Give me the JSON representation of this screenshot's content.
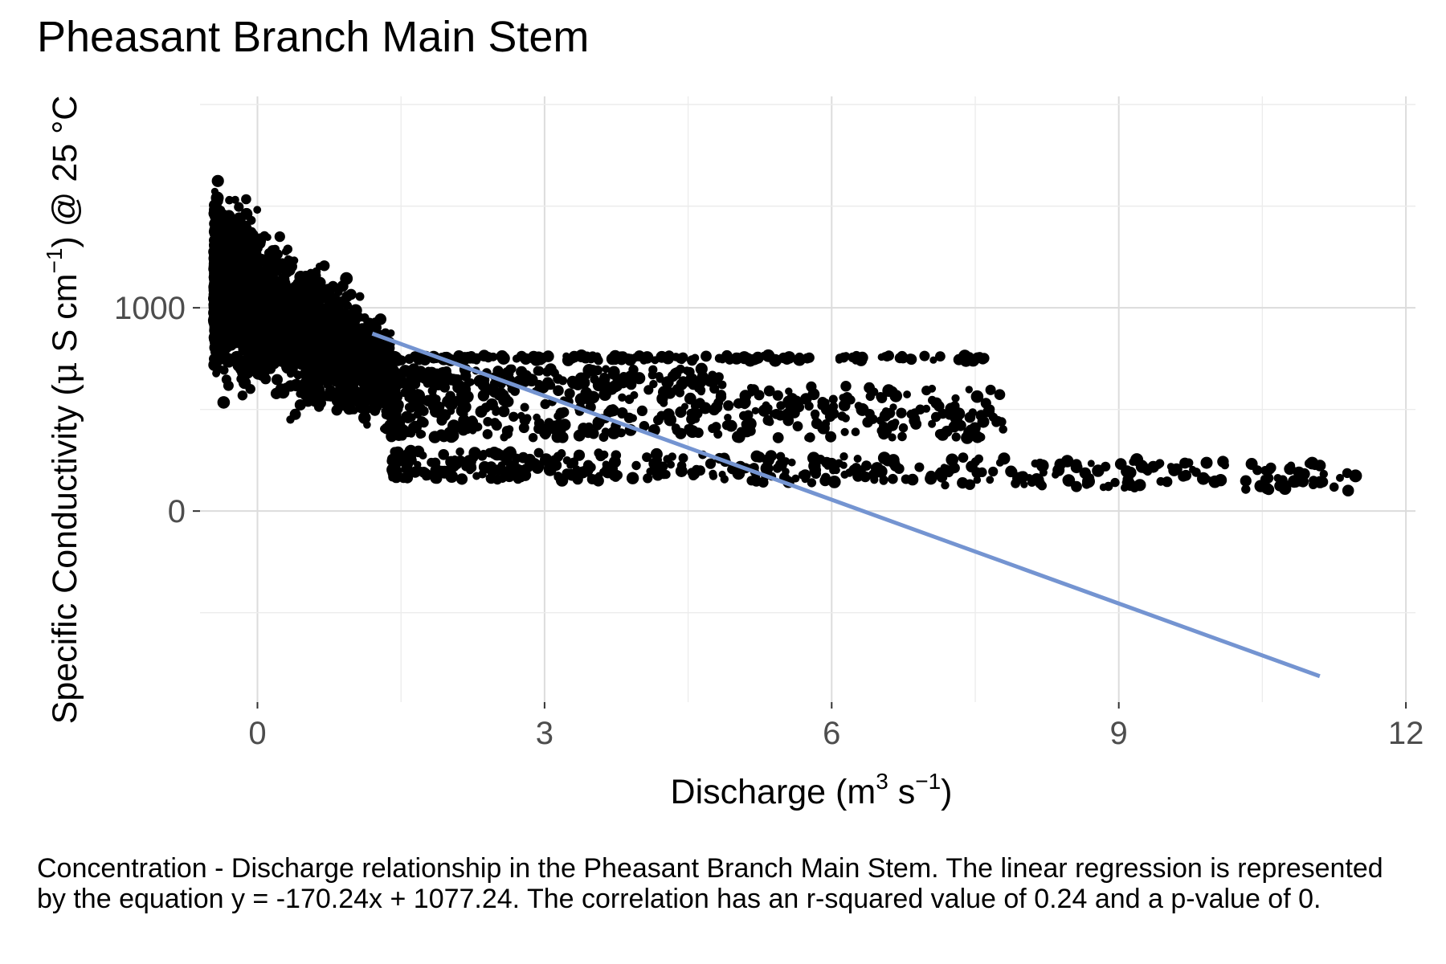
{
  "chart_data": {
    "type": "scatter",
    "title": "Pheasant Branch Main Stem",
    "xlabel": "Discharge (m³ s⁻¹)",
    "ylabel": "Specific Conductivity (μ S cm⁻¹) @ 25 °C",
    "xlabel_parts": {
      "pre": "Discharge (m",
      "sup1": "3",
      "mid": " s",
      "sup2": "−1",
      "post": ")"
    },
    "ylabel_parts": {
      "pre": "Specific Conductivity (",
      "mu": "μ",
      "mid": " S cm",
      "sup": "−1",
      "post": ") @ 25 °C"
    },
    "x_ticks": [
      "0",
      "3",
      "6",
      "9",
      "12"
    ],
    "y_ticks": [
      "0",
      "1000"
    ],
    "xlim": [
      -0.6,
      12.1
    ],
    "ylim": [
      -940,
      2040
    ],
    "grid": true,
    "point_color": "#000000",
    "regression": {
      "slope": -170.24,
      "intercept": 1077.24,
      "x_range": [
        1.2,
        11.1
      ],
      "color": "#7494d1"
    },
    "series": [
      {
        "x_range": [
          -0.45,
          1.4
        ],
        "y_range": [
          300,
          1840
        ],
        "points": 3200,
        "kind": "main cluster"
      },
      {
        "x_range": [
          1.4,
          7.6
        ],
        "y_range": [
          740,
          765
        ],
        "points": 170,
        "kind": "upper band"
      },
      {
        "x_range": [
          1.4,
          4.9
        ],
        "y_range": [
          620,
          700
        ],
        "points": 160,
        "kind": "upper-middle band"
      },
      {
        "x_range": [
          1.4,
          7.8
        ],
        "y_range": [
          360,
          620
        ],
        "points": 420,
        "kind": "middle cloud"
      },
      {
        "x_range": [
          1.4,
          11.5
        ],
        "y_range": [
          160,
          300
        ],
        "points": 420,
        "kind": "lower band"
      }
    ]
  },
  "caption": "Concentration - Discharge relationship in the Pheasant Branch Main Stem. The linear regression is represented by the equation y = -170.24x + 1077.24. The correlation has an r-squared value of 0.24 and a p-value of 0."
}
